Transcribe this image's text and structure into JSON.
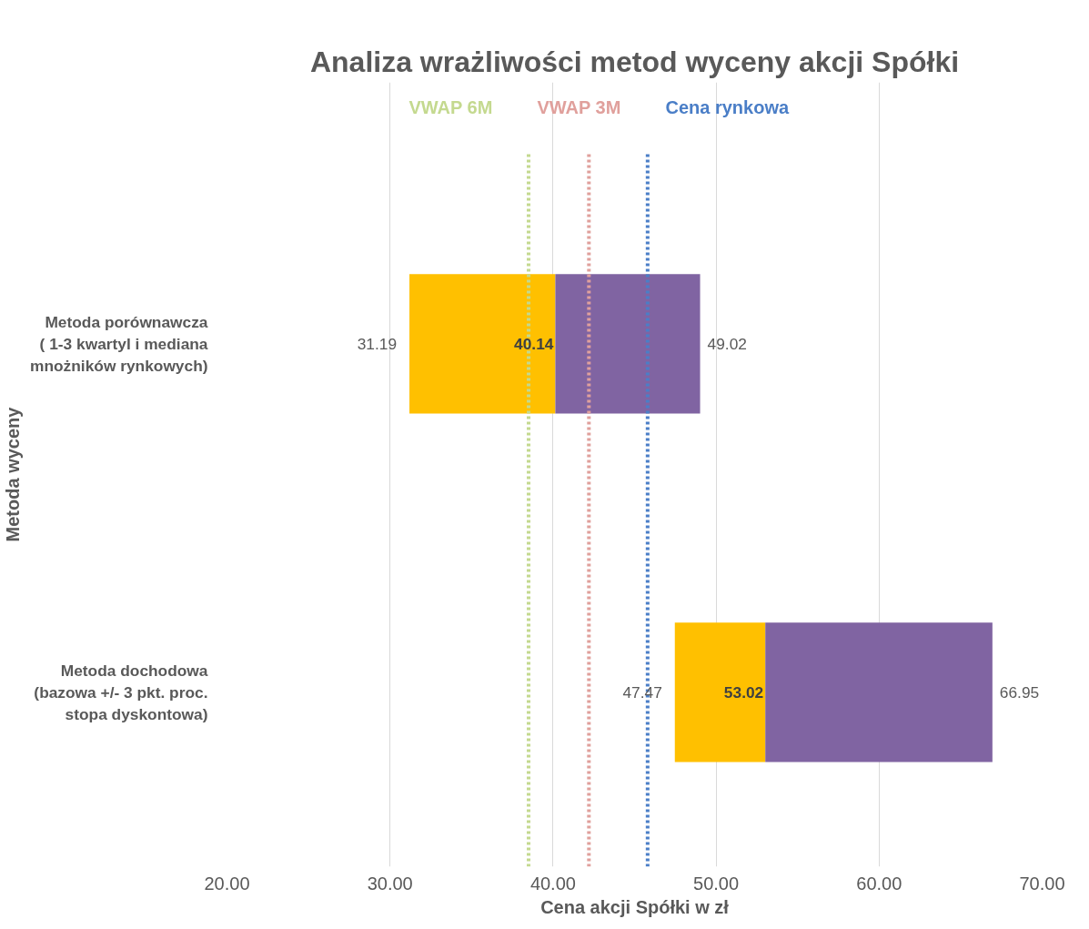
{
  "chart_data": {
    "type": "bar",
    "orientation": "horizontal",
    "title": "Analiza wrażliwości metod wyceny akcji Spółki",
    "xlabel": "Cena akcji Spółki w zł",
    "ylabel": "Metoda wyceny",
    "categories": [
      "Metoda porównawcza\n( 1-3 kwartyl i mediana\nmnożników rynkowych)",
      "Metoda dochodowa\n(bazowa +/- 3 pkt. proc.\nstopa dyskontowa)"
    ],
    "series": [
      {
        "color": "#ffc000",
        "base": [
          31.19,
          47.47
        ],
        "values": [
          8.95,
          5.55
        ]
      },
      {
        "color": "#8064a2",
        "base": [
          40.14,
          53.02
        ],
        "values": [
          8.88,
          13.93
        ]
      }
    ],
    "annotations": [
      "31.19",
      "40.14",
      "49.02",
      "47.47",
      "53.02",
      "66.95"
    ],
    "ref_lines": [
      {
        "axis": "x",
        "value": 38.5,
        "label": "VWAP 6M",
        "color": "#c4d98f",
        "line_style": "dotted"
      },
      {
        "axis": "x",
        "value": 42.2,
        "label": "VWAP 3M",
        "color": "#e0a09c",
        "line_style": "dotted"
      },
      {
        "axis": "x",
        "value": 45.8,
        "label": "Cena rynkowa",
        "color": "#4a7ec7",
        "line_style": "dotted"
      }
    ],
    "xlim": [
      20,
      70
    ],
    "xticks": [
      {
        "value": 20,
        "label": "20.00"
      },
      {
        "value": 30,
        "label": "30.00"
      },
      {
        "value": 40,
        "label": "40.00"
      },
      {
        "value": 50,
        "label": "50.00"
      },
      {
        "value": 60,
        "label": "60.00"
      },
      {
        "value": 70,
        "label": "70.00"
      }
    ],
    "grid": "x"
  }
}
